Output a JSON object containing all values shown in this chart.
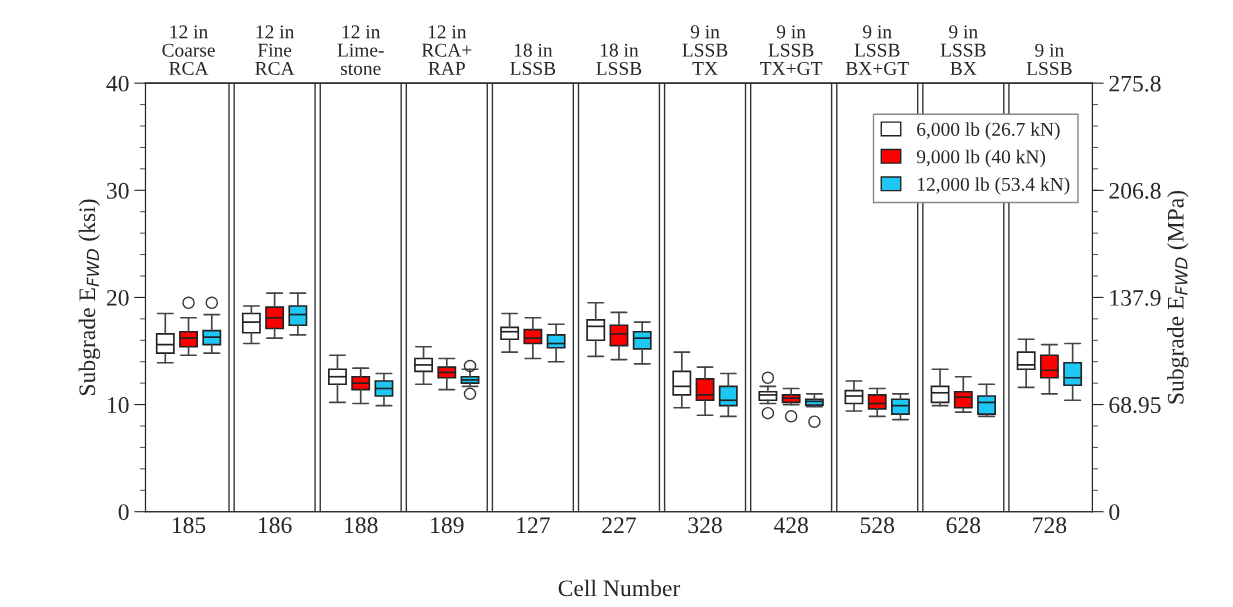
{
  "chart_data": {
    "type": "box",
    "xlabel": "Cell Number",
    "ylabel": "Subgrade E$_{FWD}$ (ksi)",
    "y2label": "Subgrade E$_{FWD}$ (MPa)",
    "categories": [
      "185",
      "186",
      "188",
      "189",
      "127",
      "227",
      "328",
      "428",
      "528",
      "628",
      "728"
    ],
    "annotations": [
      "12 in\nCoarse\nRCA",
      "12 in\nFine\nRCA",
      "12 in\nLime-\nstone",
      "12 in\nRCA+\nRAP",
      "18 in\nLSSB",
      "18 in\nLSSB",
      "9 in\nLSSB\nTX",
      "9 in\nLSSB\nTX+GT",
      "9 in\nLSSB\nBX+GT",
      "9 in\nLSSB\nBX",
      "9 in\nLSSB"
    ],
    "ylim": [
      0,
      40
    ],
    "yticks": [
      0,
      10,
      20,
      30,
      40
    ],
    "y2lim": [
      0,
      275.8
    ],
    "y2ticks": [
      0,
      68.95,
      137.9,
      206.8,
      275.8
    ],
    "legend": "top right",
    "grid": false,
    "series": [
      {
        "name": "6,000 lb (26.7 kN)",
        "color": "#ffffff",
        "boxes": [
          {
            "low": 13.9,
            "q1": 14.8,
            "median": 15.6,
            "q3": 16.6,
            "high": 18.5
          },
          {
            "low": 15.7,
            "q1": 16.7,
            "median": 17.7,
            "q3": 18.5,
            "high": 19.2
          },
          {
            "low": 10.2,
            "q1": 11.9,
            "median": 12.6,
            "q3": 13.3,
            "high": 14.6
          },
          {
            "low": 11.9,
            "q1": 13.1,
            "median": 13.7,
            "q3": 14.3,
            "high": 15.4
          },
          {
            "low": 14.9,
            "q1": 16.1,
            "median": 16.8,
            "q3": 17.2,
            "high": 18.5
          },
          {
            "low": 14.5,
            "q1": 16.0,
            "median": 17.3,
            "q3": 17.9,
            "high": 19.5
          },
          {
            "low": 9.7,
            "q1": 10.9,
            "median": 11.7,
            "q3": 13.1,
            "high": 14.9
          },
          {
            "low": 10.1,
            "q1": 10.4,
            "median": 10.9,
            "q3": 11.2,
            "high": 11.7,
            "outliers": [
              12.5,
              9.2
            ]
          },
          {
            "low": 9.4,
            "q1": 10.1,
            "median": 10.8,
            "q3": 11.3,
            "high": 12.2
          },
          {
            "low": 9.9,
            "q1": 10.2,
            "median": 11.1,
            "q3": 11.7,
            "high": 13.3
          },
          {
            "low": 11.6,
            "q1": 13.3,
            "median": 13.7,
            "q3": 14.9,
            "high": 16.1
          }
        ]
      },
      {
        "name": "9,000 lb (40 kN)",
        "color": "#ff0000",
        "boxes": [
          {
            "low": 14.6,
            "q1": 15.4,
            "median": 16.2,
            "q3": 16.8,
            "high": 18.1,
            "outliers": [
              19.5
            ]
          },
          {
            "low": 16.2,
            "q1": 17.1,
            "median": 18.1,
            "q3": 19.1,
            "high": 20.4
          },
          {
            "low": 10.1,
            "q1": 11.4,
            "median": 12.0,
            "q3": 12.6,
            "high": 13.4
          },
          {
            "low": 11.4,
            "q1": 12.5,
            "median": 13.0,
            "q3": 13.5,
            "high": 14.3
          },
          {
            "low": 14.3,
            "q1": 15.7,
            "median": 16.2,
            "q3": 17.0,
            "high": 18.1
          },
          {
            "low": 14.2,
            "q1": 15.5,
            "median": 16.6,
            "q3": 17.4,
            "high": 18.6
          },
          {
            "low": 9.0,
            "q1": 10.4,
            "median": 10.9,
            "q3": 12.4,
            "high": 13.5
          },
          {
            "low": 10.0,
            "q1": 10.2,
            "median": 10.6,
            "q3": 10.9,
            "high": 11.5,
            "outliers": [
              8.9
            ]
          },
          {
            "low": 8.9,
            "q1": 9.6,
            "median": 10.1,
            "q3": 10.9,
            "high": 11.5
          },
          {
            "low": 9.3,
            "q1": 9.7,
            "median": 10.7,
            "q3": 11.2,
            "high": 12.6
          },
          {
            "low": 11.0,
            "q1": 12.5,
            "median": 13.2,
            "q3": 14.6,
            "high": 15.6
          }
        ]
      },
      {
        "name": "12,000 lb (53.4 kN)",
        "color": "#1ec8f5",
        "boxes": [
          {
            "low": 14.8,
            "q1": 15.6,
            "median": 16.3,
            "q3": 16.9,
            "high": 18.4,
            "outliers": [
              19.5
            ]
          },
          {
            "low": 16.5,
            "q1": 17.4,
            "median": 18.4,
            "q3": 19.2,
            "high": 20.4
          },
          {
            "low": 9.9,
            "q1": 10.8,
            "median": 11.5,
            "q3": 12.2,
            "high": 12.9
          },
          {
            "low": 11.7,
            "q1": 12.0,
            "median": 12.3,
            "q3": 12.6,
            "high": 13.3,
            "outliers": [
              13.6,
              11.0
            ]
          },
          {
            "low": 14.0,
            "q1": 15.3,
            "median": 15.7,
            "q3": 16.5,
            "high": 17.5
          },
          {
            "low": 13.8,
            "q1": 15.2,
            "median": 16.2,
            "q3": 16.8,
            "high": 17.7
          },
          {
            "low": 8.9,
            "q1": 9.9,
            "median": 10.4,
            "q3": 11.7,
            "high": 12.9
          },
          {
            "low": 9.8,
            "q1": 9.95,
            "median": 10.3,
            "q3": 10.5,
            "high": 11.0,
            "outliers": [
              8.4
            ]
          },
          {
            "low": 8.6,
            "q1": 9.1,
            "median": 9.9,
            "q3": 10.5,
            "high": 11.0
          },
          {
            "low": 8.9,
            "q1": 9.1,
            "median": 10.2,
            "q3": 10.8,
            "high": 11.9
          },
          {
            "low": 10.4,
            "q1": 11.8,
            "median": 12.5,
            "q3": 13.9,
            "high": 15.7
          }
        ]
      }
    ]
  }
}
